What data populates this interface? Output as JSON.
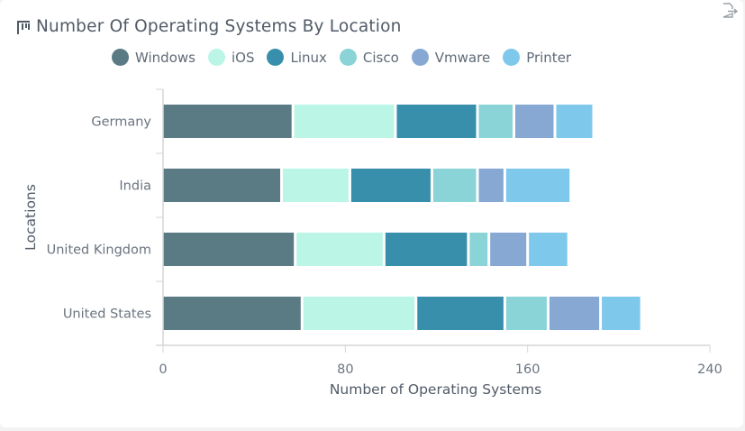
{
  "header": {
    "title": "Number Of Operating Systems By Location",
    "title_icon": "bar-chart-icon",
    "export_icon": "export-icon"
  },
  "colors": {
    "Windows": "#5a7a84",
    "iOS": "#baf5e6",
    "Linux": "#388fab",
    "Cisco": "#8ad3d6",
    "Vmware": "#86a8d3",
    "Printer": "#7ec8ec"
  },
  "chart_data": {
    "type": "bar",
    "orientation": "horizontal",
    "stacked": true,
    "title": "Number Of Operating Systems By Location",
    "xlabel": "Number of Operating Systems",
    "ylabel": "Locations",
    "xlim": [
      0,
      240
    ],
    "xticks": [
      "0",
      "80",
      "160",
      "240"
    ],
    "categories": [
      "Germany",
      "India",
      "United Kingdom",
      "United States"
    ],
    "legend_position": "top",
    "grid": false,
    "series": [
      {
        "name": "Windows",
        "values": [
          57,
          52,
          58,
          61
        ]
      },
      {
        "name": "iOS",
        "values": [
          45,
          30,
          39,
          50
        ]
      },
      {
        "name": "Linux",
        "values": [
          36,
          36,
          37,
          39
        ]
      },
      {
        "name": "Cisco",
        "values": [
          16,
          20,
          9,
          19
        ]
      },
      {
        "name": "Vmware",
        "values": [
          18,
          12,
          17,
          23
        ]
      },
      {
        "name": "Printer",
        "values": [
          17,
          29,
          18,
          18
        ]
      }
    ]
  }
}
